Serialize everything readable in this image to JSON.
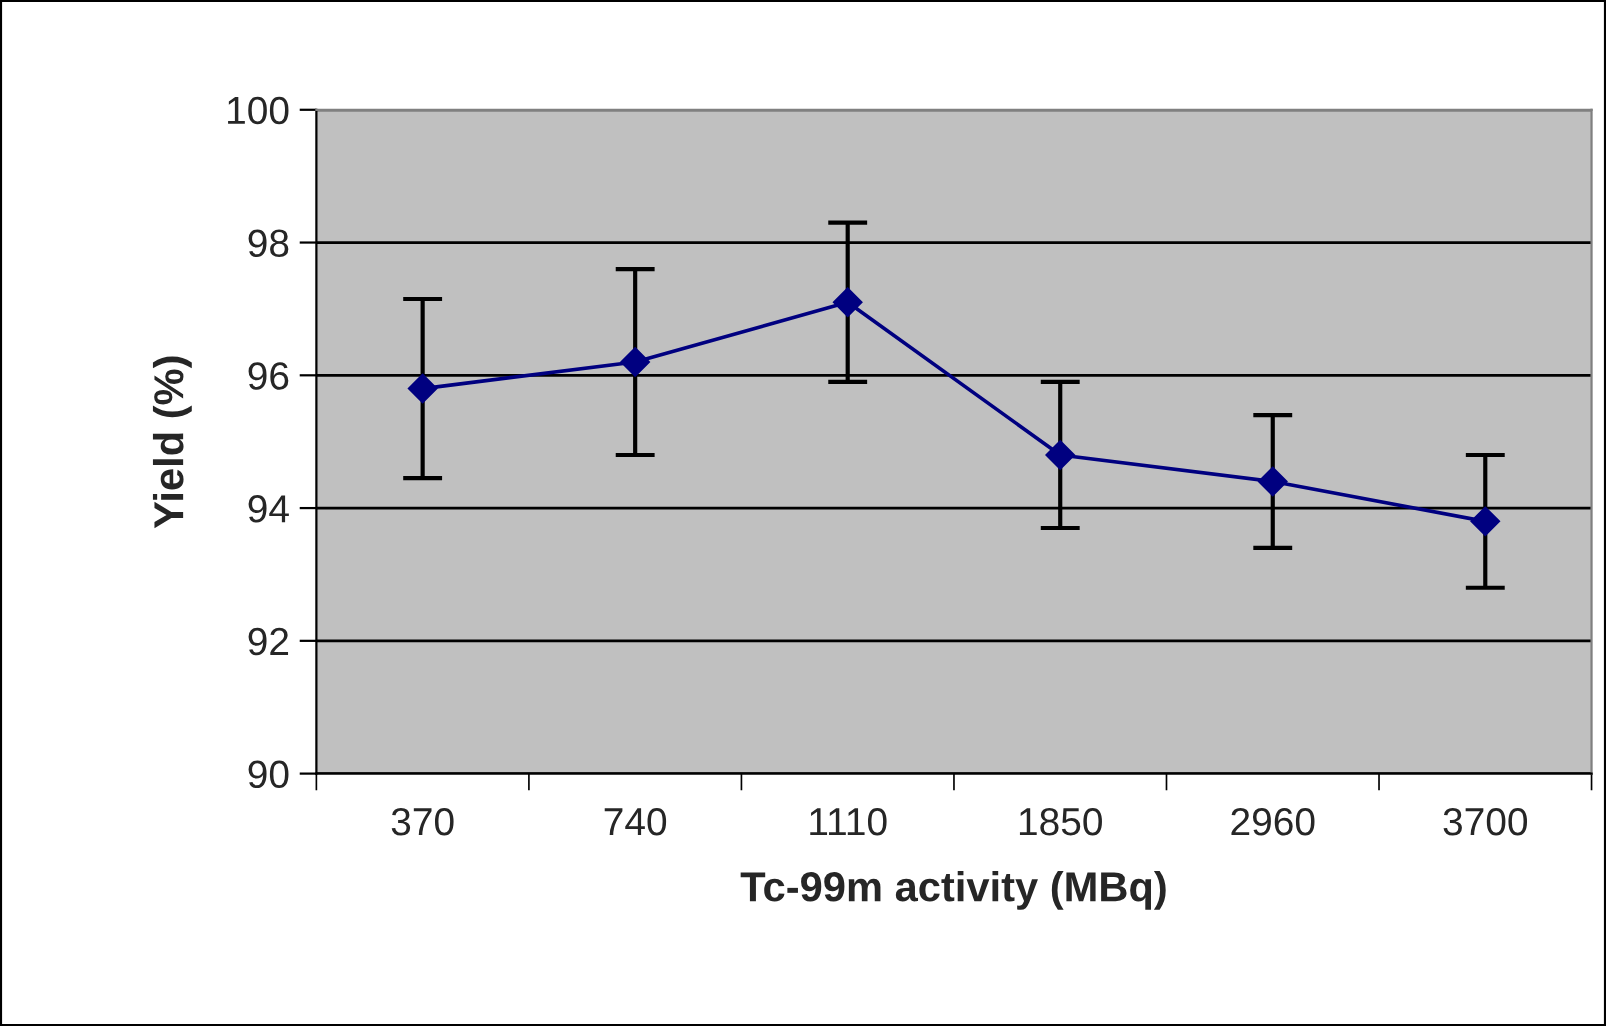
{
  "chart_data": {
    "type": "line",
    "xlabel": "Tc-99m activity (MBq)",
    "ylabel": "Yield (%)",
    "categories": [
      "370",
      "740",
      "1110",
      "1850",
      "2960",
      "3700"
    ],
    "series": [
      {
        "color": "#000080",
        "values": [
          95.8,
          96.2,
          97.1,
          94.8,
          94.4,
          93.8
        ],
        "errors": [
          1.35,
          1.4,
          1.2,
          1.1,
          1.0,
          1.0
        ]
      }
    ],
    "ylim": [
      90,
      100
    ],
    "yticks": [
      90,
      92,
      94,
      96,
      98,
      100
    ],
    "grid": "y",
    "marker": "diamond",
    "line_style": "solid",
    "legend": false
  }
}
